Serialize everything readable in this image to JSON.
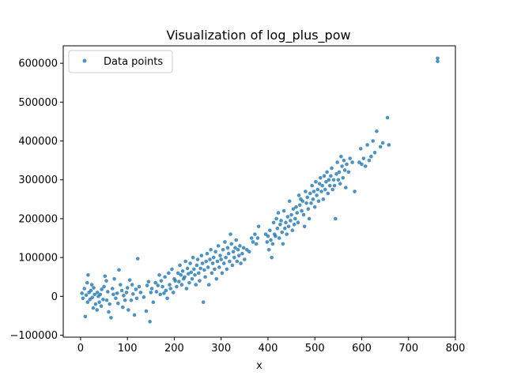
{
  "chart_data": {
    "type": "scatter",
    "title": "Visualization of log_plus_pow",
    "xlabel": "x",
    "ylabel": "",
    "xlim": [
      -37,
      800
    ],
    "ylim": [
      -105000,
      645000
    ],
    "xticks": [
      0,
      100,
      200,
      300,
      400,
      500,
      600,
      700,
      800
    ],
    "yticks": [
      -100000,
      0,
      100000,
      200000,
      300000,
      400000,
      500000,
      600000
    ],
    "xtick_labels": [
      "0",
      "100",
      "200",
      "300",
      "400",
      "500",
      "600",
      "700",
      "800"
    ],
    "ytick_labels": [
      "−100000",
      "0",
      "100000",
      "200000",
      "300000",
      "400000",
      "500000",
      "600000"
    ],
    "grid": false,
    "legend": {
      "position": "top-left",
      "entries": [
        "Data points"
      ]
    },
    "series": [
      {
        "name": "Data points",
        "color": "#1f77b4",
        "points": [
          [
            3,
            8000
          ],
          [
            5,
            -5000
          ],
          [
            8,
            20000
          ],
          [
            10,
            -52000
          ],
          [
            12,
            3000
          ],
          [
            14,
            35000
          ],
          [
            15,
            -15000
          ],
          [
            16,
            55000
          ],
          [
            18,
            10000
          ],
          [
            20,
            -8000
          ],
          [
            22,
            15000
          ],
          [
            24,
            30000
          ],
          [
            25,
            -3000
          ],
          [
            27,
            -30000
          ],
          [
            28,
            22000
          ],
          [
            30,
            5000
          ],
          [
            32,
            -20000
          ],
          [
            35,
            -35000
          ],
          [
            36,
            10000
          ],
          [
            38,
            0
          ],
          [
            40,
            -15000
          ],
          [
            42,
            5000
          ],
          [
            44,
            -25000
          ],
          [
            45,
            18000
          ],
          [
            48,
            -8000
          ],
          [
            50,
            25000
          ],
          [
            52,
            52000
          ],
          [
            55,
            40000
          ],
          [
            56,
            -10000
          ],
          [
            58,
            12000
          ],
          [
            60,
            -40000
          ],
          [
            62,
            -20000
          ],
          [
            65,
            -55000
          ],
          [
            68,
            20000
          ],
          [
            70,
            5000
          ],
          [
            72,
            45000
          ],
          [
            75,
            -5000
          ],
          [
            78,
            8000
          ],
          [
            80,
            -18000
          ],
          [
            82,
            68000
          ],
          [
            85,
            30000
          ],
          [
            88,
            15000
          ],
          [
            90,
            -28000
          ],
          [
            92,
            2000
          ],
          [
            95,
            -10000
          ],
          [
            98,
            10000
          ],
          [
            100,
            22000
          ],
          [
            102,
            -35000
          ],
          [
            105,
            42000
          ],
          [
            108,
            -10000
          ],
          [
            110,
            30000
          ],
          [
            112,
            6000
          ],
          [
            115,
            -48000
          ],
          [
            118,
            18000
          ],
          [
            120,
            -5000
          ],
          [
            122,
            97000
          ],
          [
            125,
            25000
          ],
          [
            128,
            10000
          ],
          [
            135,
            -2000
          ],
          [
            140,
            -38000
          ],
          [
            142,
            28000
          ],
          [
            145,
            38000
          ],
          [
            148,
            -65000
          ],
          [
            150,
            10000
          ],
          [
            152,
            20000
          ],
          [
            155,
            -15000
          ],
          [
            160,
            35000
          ],
          [
            162,
            12000
          ],
          [
            165,
            28000
          ],
          [
            168,
            55000
          ],
          [
            170,
            5000
          ],
          [
            172,
            40000
          ],
          [
            175,
            25000
          ],
          [
            178,
            8000
          ],
          [
            180,
            50000
          ],
          [
            182,
            15000
          ],
          [
            185,
            -5000
          ],
          [
            188,
            60000
          ],
          [
            190,
            30000
          ],
          [
            192,
            20000
          ],
          [
            195,
            70000
          ],
          [
            198,
            10000
          ],
          [
            200,
            45000
          ],
          [
            202,
            40000
          ],
          [
            205,
            25000
          ],
          [
            208,
            60000
          ],
          [
            210,
            38000
          ],
          [
            212,
            80000
          ],
          [
            214,
            55000
          ],
          [
            216,
            30000
          ],
          [
            218,
            65000
          ],
          [
            220,
            45000
          ],
          [
            222,
            50000
          ],
          [
            224,
            90000
          ],
          [
            226,
            20000
          ],
          [
            228,
            72000
          ],
          [
            230,
            58000
          ],
          [
            232,
            35000
          ],
          [
            234,
            85000
          ],
          [
            236,
            62000
          ],
          [
            238,
            45000
          ],
          [
            240,
            100000
          ],
          [
            242,
            70000
          ],
          [
            244,
            55000
          ],
          [
            246,
            30000
          ],
          [
            248,
            80000
          ],
          [
            250,
            95000
          ],
          [
            252,
            60000
          ],
          [
            254,
            40000
          ],
          [
            256,
            72000
          ],
          [
            258,
            105000
          ],
          [
            260,
            85000
          ],
          [
            262,
            -15000
          ],
          [
            264,
            68000
          ],
          [
            266,
            50000
          ],
          [
            268,
            90000
          ],
          [
            270,
            110000
          ],
          [
            272,
            75000
          ],
          [
            274,
            30000
          ],
          [
            276,
            95000
          ],
          [
            278,
            120000
          ],
          [
            280,
            60000
          ],
          [
            282,
            85000
          ],
          [
            284,
            100000
          ],
          [
            286,
            70000
          ],
          [
            288,
            115000
          ],
          [
            290,
            45000
          ],
          [
            292,
            90000
          ],
          [
            294,
            130000
          ],
          [
            296,
            75000
          ],
          [
            298,
            105000
          ],
          [
            300,
            95000
          ],
          [
            302,
            60000
          ],
          [
            304,
            120000
          ],
          [
            306,
            85000
          ],
          [
            308,
            140000
          ],
          [
            310,
            100000
          ],
          [
            312,
            70000
          ],
          [
            314,
            125000
          ],
          [
            316,
            110000
          ],
          [
            318,
            90000
          ],
          [
            320,
            160000
          ],
          [
            322,
            135000
          ],
          [
            324,
            80000
          ],
          [
            326,
            115000
          ],
          [
            328,
            100000
          ],
          [
            330,
            125000
          ],
          [
            332,
            145000
          ],
          [
            334,
            90000
          ],
          [
            336,
            120000
          ],
          [
            338,
            105000
          ],
          [
            340,
            130000
          ],
          [
            342,
            85000
          ],
          [
            345,
            110000
          ],
          [
            348,
            125000
          ],
          [
            350,
            95000
          ],
          [
            355,
            120000
          ],
          [
            360,
            115000
          ],
          [
            365,
            150000
          ],
          [
            368,
            140000
          ],
          [
            372,
            160000
          ],
          [
            375,
            135000
          ],
          [
            378,
            150000
          ],
          [
            380,
            180000
          ],
          [
            395,
            160000
          ],
          [
            398,
            140000
          ],
          [
            400,
            155000
          ],
          [
            402,
            120000
          ],
          [
            404,
            170000
          ],
          [
            406,
            145000
          ],
          [
            408,
            100000
          ],
          [
            410,
            135000
          ],
          [
            412,
            190000
          ],
          [
            414,
            160000
          ],
          [
            416,
            155000
          ],
          [
            418,
            200000
          ],
          [
            420,
            175000
          ],
          [
            422,
            215000
          ],
          [
            424,
            150000
          ],
          [
            426,
            185000
          ],
          [
            428,
            195000
          ],
          [
            430,
            165000
          ],
          [
            432,
            135000
          ],
          [
            434,
            220000
          ],
          [
            436,
            175000
          ],
          [
            438,
            190000
          ],
          [
            440,
            160000
          ],
          [
            442,
            205000
          ],
          [
            444,
            180000
          ],
          [
            446,
            245000
          ],
          [
            448,
            195000
          ],
          [
            450,
            210000
          ],
          [
            452,
            170000
          ],
          [
            454,
            225000
          ],
          [
            456,
            185000
          ],
          [
            458,
            200000
          ],
          [
            460,
            230000
          ],
          [
            462,
            215000
          ],
          [
            464,
            190000
          ],
          [
            466,
            260000
          ],
          [
            468,
            235000
          ],
          [
            470,
            250000
          ],
          [
            472,
            220000
          ],
          [
            474,
            245000
          ],
          [
            476,
            210000
          ],
          [
            478,
            180000
          ],
          [
            480,
            270000
          ],
          [
            482,
            240000
          ],
          [
            484,
            255000
          ],
          [
            486,
            225000
          ],
          [
            488,
            200000
          ],
          [
            490,
            265000
          ],
          [
            492,
            240000
          ],
          [
            494,
            285000
          ],
          [
            496,
            250000
          ],
          [
            498,
            270000
          ],
          [
            500,
            230000
          ],
          [
            502,
            295000
          ],
          [
            504,
            260000
          ],
          [
            506,
            275000
          ],
          [
            508,
            245000
          ],
          [
            510,
            290000
          ],
          [
            512,
            305000
          ],
          [
            514,
            270000
          ],
          [
            516,
            285000
          ],
          [
            518,
            250000
          ],
          [
            520,
            310000
          ],
          [
            522,
            275000
          ],
          [
            524,
            295000
          ],
          [
            526,
            320000
          ],
          [
            528,
            265000
          ],
          [
            530,
            300000
          ],
          [
            532,
            285000
          ],
          [
            534,
            310000
          ],
          [
            536,
            330000
          ],
          [
            538,
            275000
          ],
          [
            540,
            300000
          ],
          [
            542,
            285000
          ],
          [
            544,
            200000
          ],
          [
            546,
            315000
          ],
          [
            548,
            345000
          ],
          [
            550,
            300000
          ],
          [
            552,
            320000
          ],
          [
            554,
            290000
          ],
          [
            556,
            360000
          ],
          [
            558,
            335000
          ],
          [
            560,
            305000
          ],
          [
            562,
            350000
          ],
          [
            564,
            325000
          ],
          [
            566,
            280000
          ],
          [
            568,
            340000
          ],
          [
            572,
            320000
          ],
          [
            575,
            355000
          ],
          [
            580,
            345000
          ],
          [
            585,
            270000
          ],
          [
            595,
            345000
          ],
          [
            598,
            380000
          ],
          [
            600,
            340000
          ],
          [
            604,
            355000
          ],
          [
            608,
            335000
          ],
          [
            612,
            390000
          ],
          [
            616,
            350000
          ],
          [
            620,
            360000
          ],
          [
            624,
            400000
          ],
          [
            628,
            370000
          ],
          [
            632,
            425000
          ],
          [
            640,
            385000
          ],
          [
            645,
            395000
          ],
          [
            655,
            460000
          ],
          [
            658,
            390000
          ],
          [
            762,
            613000
          ],
          [
            762,
            605000
          ]
        ]
      }
    ]
  }
}
